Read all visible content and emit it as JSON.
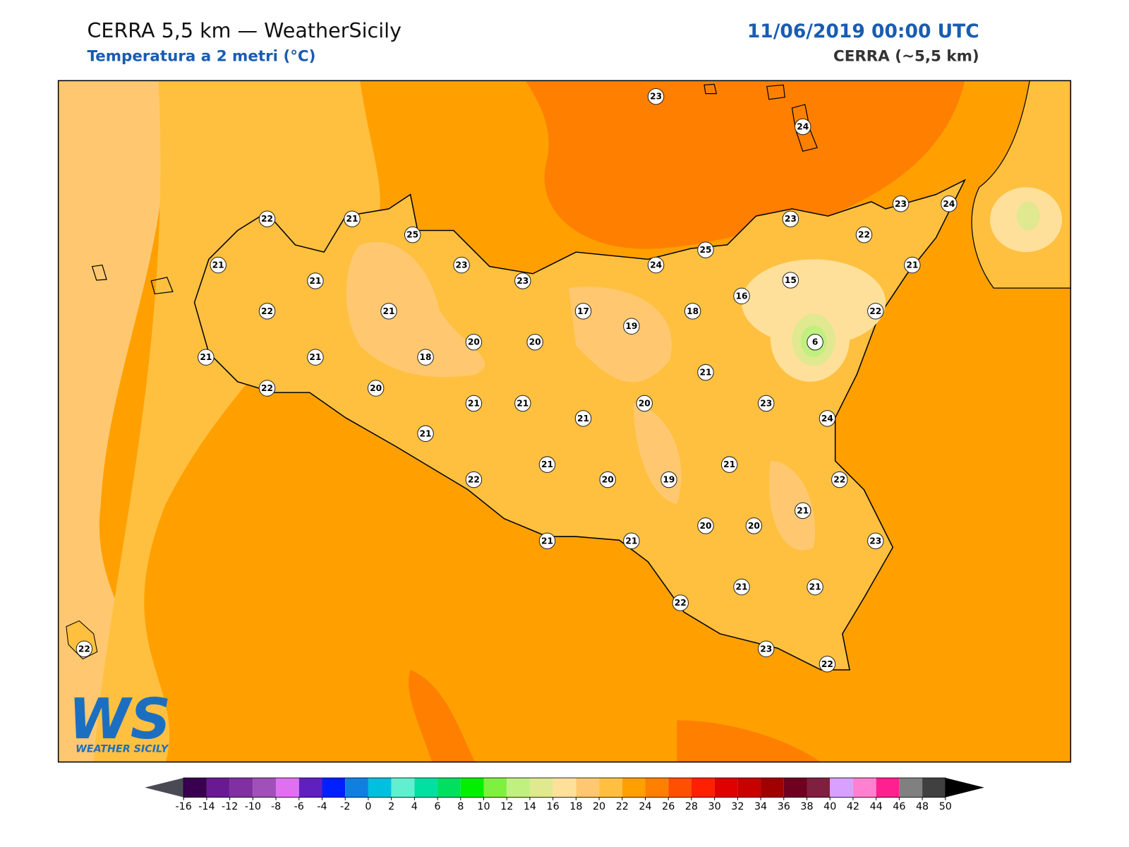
{
  "header": {
    "title": "CERRA 5,5 km — WeatherSicily",
    "subtitle": "Temperatura a 2 metri (°C)",
    "datetime": "11/06/2019 00:00 UTC",
    "model": "CERRA (~5,5 km)"
  },
  "map": {
    "stations": [
      22,
      21,
      25,
      21,
      21,
      23,
      23,
      23,
      24,
      23,
      24,
      23,
      22,
      25,
      24,
      21,
      15,
      16,
      18,
      22,
      22,
      21,
      17,
      19,
      20,
      20,
      6,
      21,
      21,
      18,
      21,
      22,
      20,
      21,
      21,
      20,
      23,
      21,
      24,
      21,
      21,
      21,
      22,
      20,
      19,
      22,
      21,
      20,
      20,
      21,
      21,
      23,
      22,
      21,
      21,
      22,
      23,
      22
    ]
  },
  "logo": {
    "mark": "WS",
    "text": "WEATHER SICILY"
  },
  "colorbar": {
    "ticks": [
      -16,
      -14,
      -12,
      -10,
      -8,
      -6,
      -4,
      -2,
      0,
      2,
      4,
      6,
      8,
      10,
      12,
      14,
      16,
      18,
      20,
      22,
      24,
      26,
      28,
      30,
      32,
      34,
      36,
      38,
      40,
      42,
      44,
      46,
      48,
      50
    ],
    "colors": [
      "#3a0050",
      "#6a1a90",
      "#8030a0",
      "#a050b8",
      "#e070f0",
      "#6020c0",
      "#0020ff",
      "#1080e0",
      "#00c0e0",
      "#60f0d0",
      "#00e0a0",
      "#00e060",
      "#00f000",
      "#80f040",
      "#c0f080",
      "#e0e890",
      "#ffe09a",
      "#ffc870",
      "#ffc040",
      "#ffa000",
      "#ff8000",
      "#ff5000",
      "#ff2000",
      "#e00000",
      "#c80000",
      "#a00000",
      "#700020",
      "#802040",
      "#d8a0ff",
      "#ff80d0",
      "#ff2090",
      "#808080",
      "#404040"
    ],
    "under_color": "#4a4a55",
    "over_color": "#000000"
  }
}
